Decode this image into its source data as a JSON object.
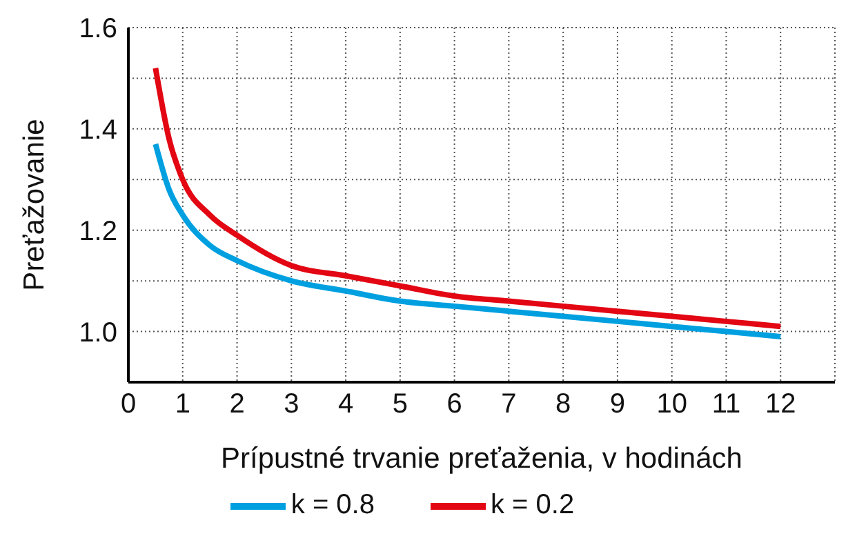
{
  "chart_data": {
    "type": "line",
    "xlabel": "Prípustné trvanie preťaženia, v hodinách",
    "ylabel": "Preťažovanie",
    "xlim": [
      0,
      13
    ],
    "xticks": [
      0,
      1,
      2,
      3,
      4,
      5,
      6,
      7,
      8,
      9,
      10,
      11,
      12
    ],
    "ylim": [
      0.9,
      1.6
    ],
    "yticks": [
      {
        "value": 0.9,
        "label": null
      },
      {
        "value": 1.0,
        "label": "1.0"
      },
      {
        "value": 1.1,
        "label": null
      },
      1.2,
      {
        "value": 1.3,
        "label": null
      },
      1.4,
      {
        "value": 1.5,
        "label": null
      },
      1.6
    ],
    "x": [
      0.5,
      0.75,
      1,
      1.5,
      2,
      3,
      4,
      5,
      6,
      7,
      8,
      9,
      10,
      11,
      12
    ],
    "series": [
      {
        "name": "k = 0.8",
        "color": "#00a0e0",
        "values": [
          1.37,
          1.28,
          1.23,
          1.17,
          1.14,
          1.1,
          1.08,
          1.06,
          1.05,
          1.04,
          1.03,
          1.02,
          1.01,
          1.0,
          0.99
        ]
      },
      {
        "name": "k = 0.2",
        "color": "#e30613",
        "values": [
          1.52,
          1.38,
          1.3,
          1.23,
          1.19,
          1.13,
          1.11,
          1.09,
          1.07,
          1.06,
          1.05,
          1.04,
          1.03,
          1.02,
          1.01
        ]
      }
    ],
    "grid": true,
    "legend": "bottom",
    "marker": "none",
    "line_style": "solid"
  }
}
